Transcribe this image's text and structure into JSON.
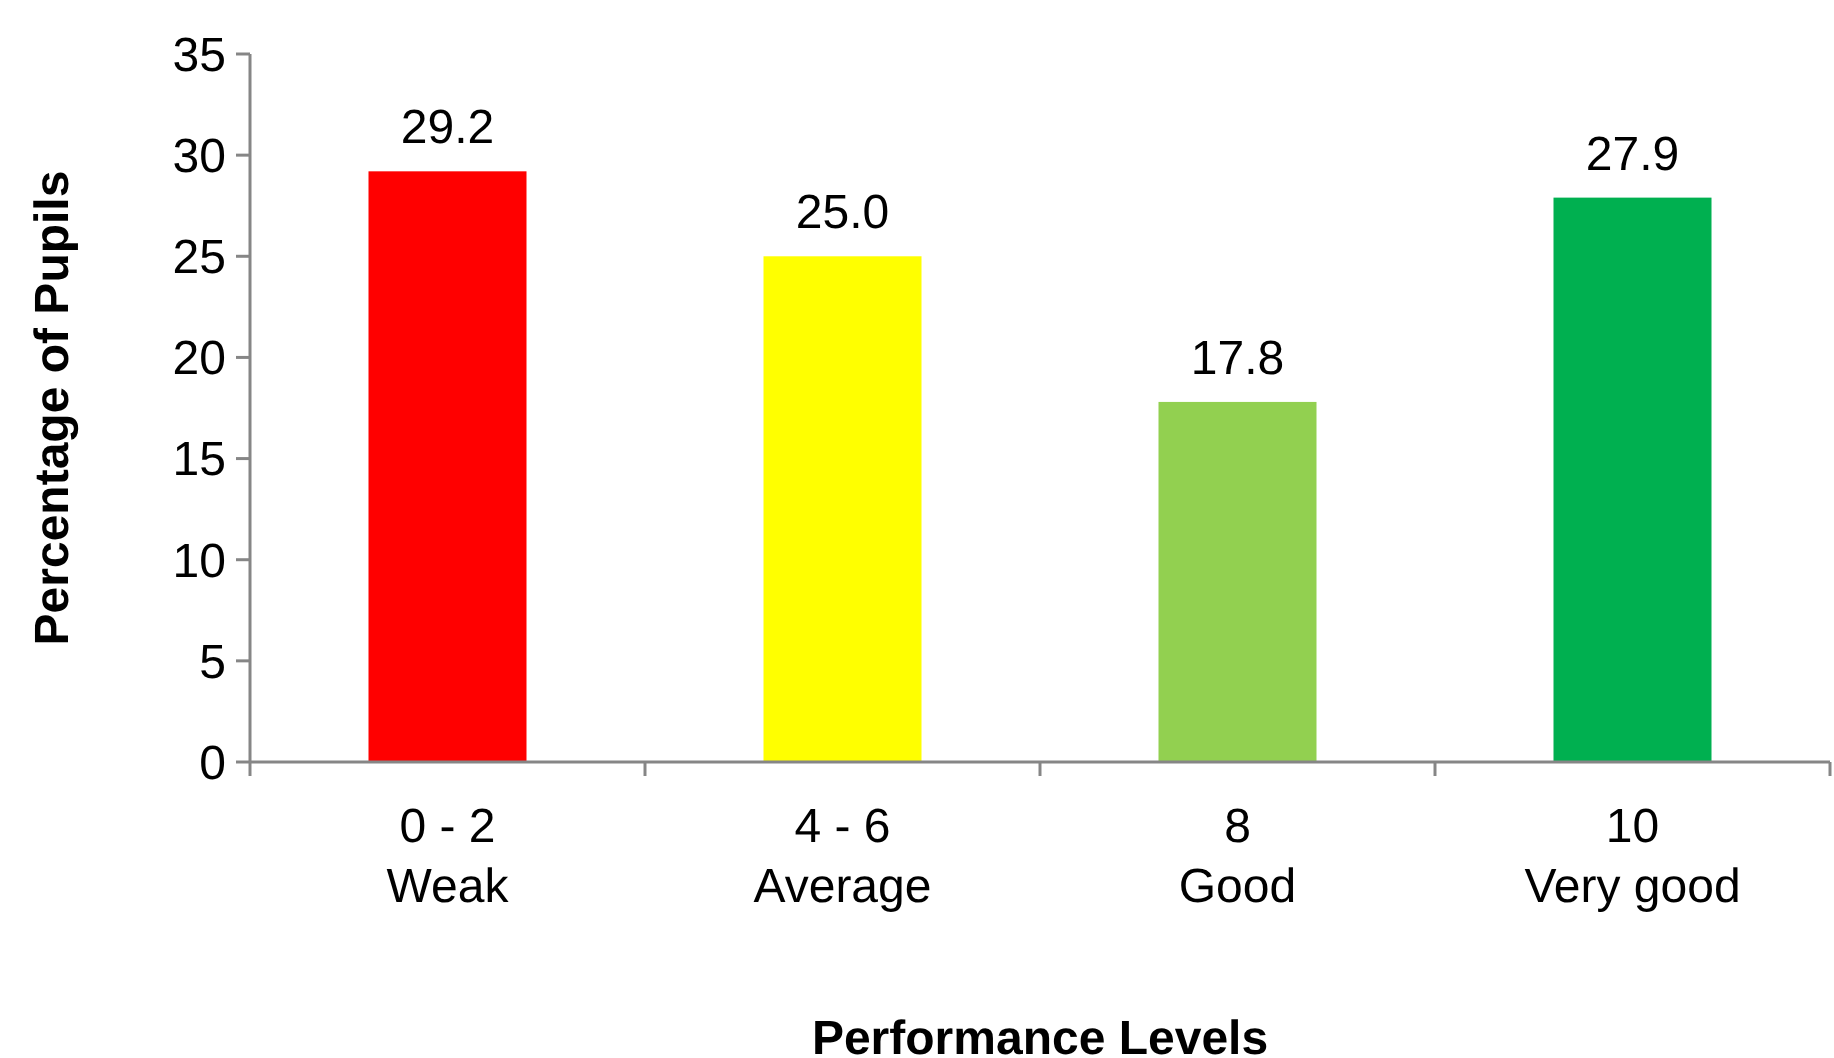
{
  "chart_data": {
    "type": "bar",
    "xlabel": "Performance Levels",
    "ylabel": "Percentage of Pupils",
    "categories": [
      "0 - 2\nWeak",
      "4 - 6\nAverage",
      "8\nGood",
      "10\nVery good"
    ],
    "values": [
      29.2,
      25.0,
      17.8,
      27.9
    ],
    "colors": [
      "#ff0000",
      "#ffff00",
      "#92d050",
      "#00b050"
    ],
    "value_labels": [
      "29.2",
      "25.0",
      "17.8",
      "27.9"
    ],
    "ylim": [
      0,
      35
    ],
    "yticks": [
      0,
      5,
      10,
      15,
      20,
      25,
      30,
      35
    ],
    "grid": false
  }
}
